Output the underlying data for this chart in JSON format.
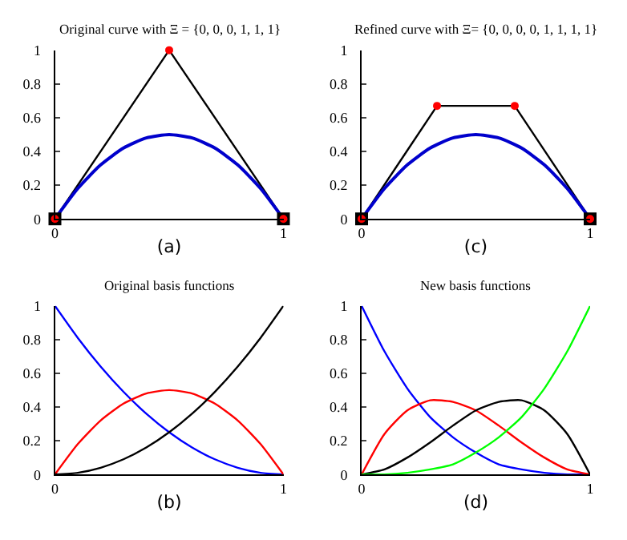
{
  "chart_data": [
    {
      "type": "line",
      "title": "Original curve with Ξ = {0, 0, 0, 1, 1, 1}",
      "xlabel": "(a)",
      "xlim": [
        0,
        1
      ],
      "ylim": [
        0,
        1
      ],
      "xticks": [
        0,
        1
      ],
      "yticks": [
        0,
        0.2,
        0.4,
        0.6,
        0.8,
        1
      ],
      "series": [
        {
          "color": "#000000",
          "x": [
            0,
            0.5,
            1
          ],
          "values": [
            0,
            1,
            0
          ]
        },
        {
          "color": "#0000cc",
          "x": [
            0,
            0.1,
            0.2,
            0.3,
            0.4,
            0.5,
            0.6,
            0.7,
            0.8,
            0.9,
            1
          ],
          "values": [
            0,
            0.18,
            0.32,
            0.42,
            0.48,
            0.5,
            0.48,
            0.42,
            0.32,
            0.18,
            0
          ]
        },
        {
          "type": "scatter",
          "marker": "square",
          "color": "#000000",
          "x": [
            0,
            1
          ],
          "values": [
            0,
            0
          ]
        },
        {
          "type": "scatter",
          "marker": "circle",
          "color": "#ff0000",
          "x": [
            0,
            0.5,
            1
          ],
          "values": [
            0,
            1,
            0
          ]
        }
      ]
    },
    {
      "type": "line",
      "title": "Refined curve with Ξ= {0, 0, 0, 0, 1, 1, 1, 1}",
      "xlabel": "(c)",
      "xlim": [
        0,
        1
      ],
      "ylim": [
        0,
        1
      ],
      "xticks": [
        0,
        1
      ],
      "yticks": [
        0,
        0.2,
        0.4,
        0.6,
        0.8,
        1
      ],
      "series": [
        {
          "color": "#000000",
          "x": [
            0,
            0.33,
            0.67,
            1
          ],
          "values": [
            0,
            0.67,
            0.67,
            0
          ]
        },
        {
          "color": "#0000cc",
          "x": [
            0,
            0.1,
            0.2,
            0.3,
            0.4,
            0.5,
            0.6,
            0.7,
            0.8,
            0.9,
            1
          ],
          "values": [
            0,
            0.18,
            0.32,
            0.42,
            0.48,
            0.5,
            0.48,
            0.42,
            0.32,
            0.18,
            0
          ]
        },
        {
          "type": "scatter",
          "marker": "square",
          "color": "#000000",
          "x": [
            0,
            1
          ],
          "values": [
            0,
            0
          ]
        },
        {
          "type": "scatter",
          "marker": "circle",
          "color": "#ff0000",
          "x": [
            0,
            0.33,
            0.67,
            1
          ],
          "values": [
            0,
            0.67,
            0.67,
            0
          ]
        }
      ]
    },
    {
      "type": "line",
      "title": "Original basis functions",
      "xlabel": "(b)",
      "xlim": [
        0,
        1
      ],
      "ylim": [
        0,
        1
      ],
      "xticks": [
        0,
        1
      ],
      "yticks": [
        0,
        0.2,
        0.4,
        0.6,
        0.8,
        1
      ],
      "x": [
        0,
        0.1,
        0.2,
        0.3,
        0.4,
        0.5,
        0.6,
        0.7,
        0.8,
        0.9,
        1
      ],
      "series": [
        {
          "color": "#0000ff",
          "values": [
            1,
            0.81,
            0.64,
            0.49,
            0.36,
            0.25,
            0.16,
            0.09,
            0.04,
            0.01,
            0
          ]
        },
        {
          "color": "#ff0000",
          "values": [
            0,
            0.18,
            0.32,
            0.42,
            0.48,
            0.5,
            0.48,
            0.42,
            0.32,
            0.18,
            0
          ]
        },
        {
          "color": "#000000",
          "values": [
            0,
            0.01,
            0.04,
            0.09,
            0.16,
            0.25,
            0.36,
            0.49,
            0.64,
            0.81,
            1
          ]
        }
      ]
    },
    {
      "type": "line",
      "title": "New basis functions",
      "xlabel": "(d)",
      "xlim": [
        0,
        1
      ],
      "ylim": [
        0,
        1
      ],
      "xticks": [
        0,
        1
      ],
      "yticks": [
        0,
        0.2,
        0.4,
        0.6,
        0.8,
        1
      ],
      "x": [
        0,
        0.1,
        0.2,
        0.3,
        0.4,
        0.5,
        0.6,
        0.7,
        0.8,
        0.9,
        1
      ],
      "series": [
        {
          "color": "#0000ff",
          "values": [
            1,
            0.73,
            0.51,
            0.34,
            0.22,
            0.13,
            0.06,
            0.03,
            0.01,
            0,
            0
          ]
        },
        {
          "color": "#ff0000",
          "values": [
            0,
            0.24,
            0.38,
            0.44,
            0.43,
            0.38,
            0.29,
            0.19,
            0.1,
            0.03,
            0
          ]
        },
        {
          "color": "#000000",
          "values": [
            0,
            0.03,
            0.1,
            0.19,
            0.29,
            0.38,
            0.43,
            0.44,
            0.38,
            0.24,
            0
          ]
        },
        {
          "color": "#00ff00",
          "values": [
            0,
            0,
            0.01,
            0.03,
            0.06,
            0.13,
            0.22,
            0.34,
            0.51,
            0.73,
            1
          ]
        }
      ]
    }
  ]
}
